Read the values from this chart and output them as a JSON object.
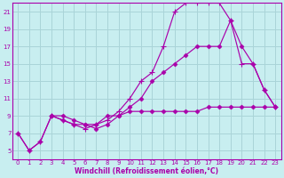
{
  "bg_color": "#c8eef0",
  "grid_color": "#aad4d8",
  "line_color": "#aa00aa",
  "xlabel": "Windchill (Refroidissement éolien,°C)",
  "xlim": [
    -0.5,
    23.5
  ],
  "ylim": [
    4,
    22
  ],
  "xticks": [
    0,
    1,
    2,
    3,
    4,
    5,
    6,
    7,
    8,
    9,
    10,
    11,
    12,
    13,
    14,
    15,
    16,
    17,
    18,
    19,
    20,
    21,
    22,
    23
  ],
  "yticks": [
    5,
    7,
    9,
    11,
    13,
    15,
    17,
    19,
    21
  ],
  "line1_x": [
    0,
    1,
    2,
    3,
    4,
    5,
    6,
    7,
    8,
    9,
    10,
    11,
    12,
    13,
    14,
    15,
    16,
    17,
    18,
    19,
    20,
    21,
    22,
    23
  ],
  "line1_y": [
    7,
    5,
    6,
    9,
    9,
    8.5,
    8,
    8,
    9,
    9,
    9.5,
    9.5,
    9.5,
    9.5,
    9.5,
    9.5,
    9.5,
    10,
    10,
    10,
    10,
    10,
    10,
    10
  ],
  "line2_x": [
    0,
    1,
    2,
    3,
    4,
    5,
    6,
    7,
    8,
    9,
    10,
    11,
    12,
    13,
    14,
    15,
    16,
    17,
    18,
    19,
    20,
    21,
    22,
    23
  ],
  "line2_y": [
    7,
    5,
    6,
    9,
    8.5,
    8,
    7.5,
    8,
    8.5,
    9.5,
    11,
    13,
    14,
    17,
    21,
    22,
    22,
    22,
    22,
    20,
    15,
    15,
    12,
    10
  ],
  "line3_x": [
    3,
    4,
    5,
    6,
    7,
    8,
    9,
    10,
    11,
    12,
    13,
    14,
    15,
    16,
    17,
    18,
    19,
    20,
    21,
    22,
    23
  ],
  "line3_y": [
    9,
    8.5,
    8,
    8,
    7.5,
    8,
    9,
    10,
    11,
    13,
    14,
    15,
    16,
    17,
    17,
    17,
    20,
    17,
    15,
    12,
    10
  ]
}
